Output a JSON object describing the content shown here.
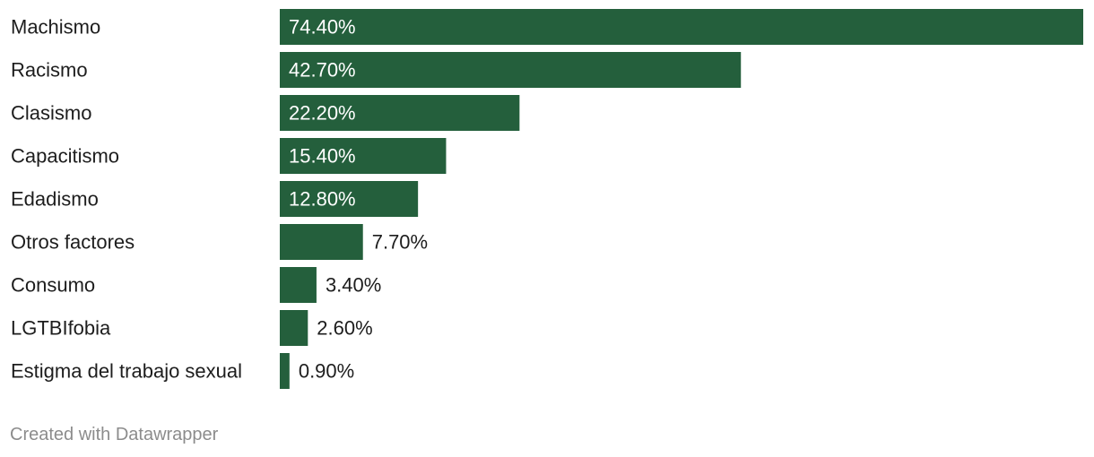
{
  "chart_data": {
    "type": "bar",
    "orientation": "horizontal",
    "categories": [
      "Machismo",
      "Racismo",
      "Clasismo",
      "Capacitismo",
      "Edadismo",
      "Otros factores",
      "Consumo",
      "LGTBIfobia",
      "Estigma del trabajo sexual"
    ],
    "values": [
      74.4,
      42.7,
      22.2,
      15.4,
      12.8,
      7.7,
      3.4,
      2.6,
      0.9
    ],
    "value_labels": [
      "74.40%",
      "42.70%",
      "22.20%",
      "15.40%",
      "12.80%",
      "7.70%",
      "3.40%",
      "2.60%",
      "0.90%"
    ],
    "xlim": [
      0,
      74.4
    ],
    "grid": false,
    "bar_color": "#245f3c",
    "label_inside_color": "#ffffff",
    "label_outside_color": "#1d1d1d"
  },
  "footer": {
    "credit": "Created with Datawrapper"
  }
}
